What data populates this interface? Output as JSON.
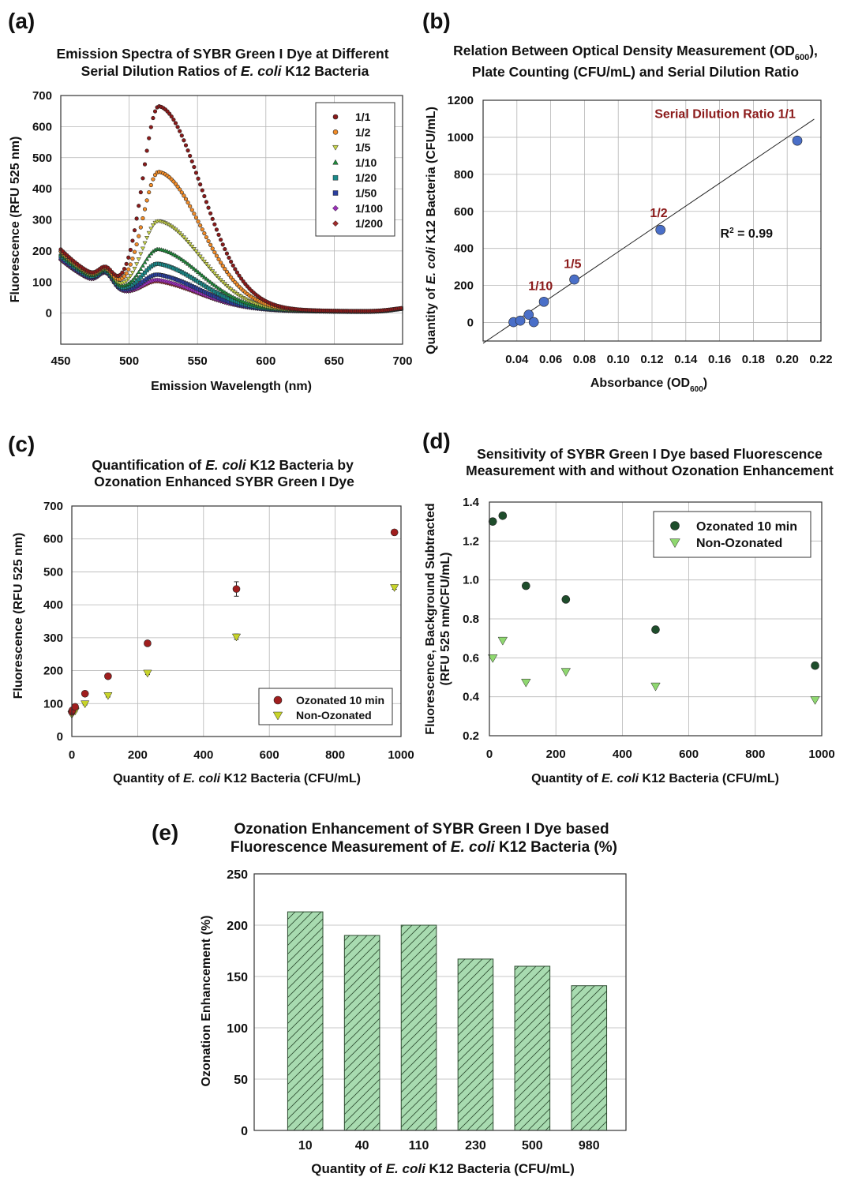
{
  "panels": {
    "a": {
      "label": "(a)",
      "title_line1": "Emission Spectra of SYBR Green I Dye at Different",
      "title_line2_pre": "Serial Dilution Ratios of ",
      "title_line2_italic": "E. coli",
      "title_line2_post": " K12 Bacteria",
      "xlabel": "Emission Wavelength (nm)",
      "ylabel": "Fluorescence (RFU 525 nm)"
    },
    "b": {
      "label": "(b)",
      "title_line1_pre": "Relation Between Optical Density Measurement (OD",
      "title_line1_sub": "600",
      "title_line1_post": "),",
      "title_line2": "Plate Counting (CFU/mL) and Serial Dilution Ratio",
      "xlabel_pre": "Absorbance (OD",
      "xlabel_sub": "600",
      "xlabel_post": ")",
      "ylabel_pre": "Quantity of ",
      "ylabel_italic": "E. coli",
      "ylabel_post": " K12 Bacteria (CFU/mL)",
      "r2_pre": "R",
      "r2_sup": "2",
      "r2_post": " = 0.99"
    },
    "c": {
      "label": "(c)",
      "title_line1_pre": "Quantification of ",
      "title_line1_italic": "E. coli",
      "title_line1_post": " K12 Bacteria by",
      "title_line2": "Ozonation Enhanced SYBR Green I Dye",
      "xlabel_pre": "Quantity of ",
      "xlabel_italic": "E. coli",
      "xlabel_post": " K12 Bacteria (CFU/mL)",
      "ylabel": "Fluorescence  (RFU 525 nm)"
    },
    "d": {
      "label": "(d)",
      "title_line1": "Sensitivity of SYBR Green I Dye based Fluorescence",
      "title_line2": "Measurement with and without Ozonation Enhancement",
      "xlabel_pre": "Quantity of ",
      "xlabel_italic": "E. coli",
      "xlabel_post": " K12 Bacteria (CFU/mL)",
      "ylabel_line1": "Fluorescence, Background Subtracted",
      "ylabel_line2": "(RFU 525 nm/CFU/mL)"
    },
    "e": {
      "label": "(e)",
      "title_line1": "Ozonation Enhancement of SYBR Green I Dye based",
      "title_line2_pre": "Fluorescence Measurement of ",
      "title_line2_italic": "E. coli",
      "title_line2_post": " K12 Bacteria (%)",
      "xlabel_pre": "Quantity of ",
      "xlabel_italic": "E. coli",
      "xlabel_post": " K12 Bacteria (CFU/mL)",
      "ylabel": "Ozonation Enhancement (%)"
    }
  },
  "chart_data": [
    {
      "id": "a",
      "type": "scatter",
      "xlim": [
        450,
        700
      ],
      "ylim": [
        -100,
        700
      ],
      "xticks": [
        450,
        500,
        550,
        600,
        650,
        700
      ],
      "yticks": [
        0,
        100,
        200,
        300,
        400,
        500,
        600,
        700
      ],
      "grid": true,
      "legend_position": "top-right",
      "spectrum_model": {
        "peak_center_nm": 522,
        "sigma_left_nm": 12,
        "sigma_right_nm": 31,
        "shoulder_center_nm": 483,
        "shoulder_sigma_nm": 5,
        "baseline_decay_nm": 45,
        "red_tail_center_nm": 706,
        "red_tail_sigma_nm": 12
      },
      "series": [
        {
          "name": "1/1",
          "color": "#8b1a1a",
          "marker": "circle",
          "peak": 625,
          "start": 200,
          "shoulder": 45,
          "floor": 5
        },
        {
          "name": "1/2",
          "color": "#f28c28",
          "marker": "circle",
          "peak": 415,
          "start": 195,
          "shoulder": 45,
          "floor": 5
        },
        {
          "name": "1/5",
          "color": "#c8d44a",
          "marker": "triangle-down",
          "peak": 258,
          "start": 190,
          "shoulder": 45,
          "floor": 4
        },
        {
          "name": "1/10",
          "color": "#1f8a3b",
          "marker": "triangle-up",
          "peak": 168,
          "start": 185,
          "shoulder": 45,
          "floor": 4
        },
        {
          "name": "1/20",
          "color": "#1a8a8a",
          "marker": "square",
          "peak": 122,
          "start": 180,
          "shoulder": 45,
          "floor": 4
        },
        {
          "name": "1/50",
          "color": "#2b3f9e",
          "marker": "square",
          "peak": 88,
          "start": 175,
          "shoulder": 45,
          "floor": 3
        },
        {
          "name": "1/100",
          "color": "#9a2fb8",
          "marker": "diamond",
          "peak": 72,
          "start": 170,
          "shoulder": 45,
          "floor": 3
        },
        {
          "name": "1/200",
          "color": "#a02c2c",
          "marker": "diamond",
          "peak": 68,
          "start": 168,
          "shoulder": 45,
          "floor": 3
        }
      ]
    },
    {
      "id": "b",
      "type": "scatter",
      "xlim": [
        0.02,
        0.22
      ],
      "ylim": [
        -100,
        1200
      ],
      "xticks": [
        0.04,
        0.06,
        0.08,
        0.1,
        0.12,
        0.14,
        0.16,
        0.18,
        0.2,
        0.22
      ],
      "xtick_labels": [
        "0.04",
        "0.06",
        "0.08",
        "0.10",
        "0.12",
        "0.14",
        "0.16",
        "0.18",
        "0.20",
        "0.22"
      ],
      "yticks": [
        0,
        200,
        400,
        600,
        800,
        1000,
        1200
      ],
      "grid": true,
      "points": {
        "x": [
          0.038,
          0.042,
          0.047,
          0.05,
          0.056,
          0.074,
          0.125,
          0.206
        ],
        "y": [
          2,
          10,
          42,
          2,
          112,
          232,
          500,
          982
        ],
        "color": "#4a6fc8"
      },
      "fit_line": {
        "x": [
          0.02,
          0.216
        ],
        "y": [
          -112,
          1098
        ],
        "r2": 0.99
      },
      "annotations": [
        {
          "text": "Serial Dilution Ratio 1/1",
          "x": 0.205,
          "y": 1105
        },
        {
          "text": "1/2",
          "x": 0.124,
          "y": 570
        },
        {
          "text": "1/5",
          "x": 0.073,
          "y": 295
        },
        {
          "text": "1/10",
          "x": 0.054,
          "y": 175
        }
      ]
    },
    {
      "id": "c",
      "type": "scatter",
      "xlim": [
        0,
        1000
      ],
      "ylim": [
        0,
        700
      ],
      "xticks": [
        0,
        200,
        400,
        600,
        800,
        1000
      ],
      "yticks": [
        0,
        100,
        200,
        300,
        400,
        500,
        600,
        700
      ],
      "grid": true,
      "legend_position": "bottom-right",
      "series": [
        {
          "name": "Ozonated 10 min",
          "color": "#a01e1e",
          "marker": "circle",
          "x": [
            0,
            2,
            10,
            40,
            110,
            230,
            500,
            980
          ],
          "y": [
            75,
            80,
            90,
            130,
            183,
            283,
            448,
            620
          ],
          "err": [
            4,
            4,
            4,
            5,
            5,
            6,
            22,
            8
          ]
        },
        {
          "name": "Non-Ozonated",
          "color": "#c8d42a",
          "marker": "triangle-down",
          "x": [
            0,
            2,
            10,
            40,
            110,
            230,
            500,
            980
          ],
          "y": [
            68,
            72,
            78,
            100,
            125,
            193,
            303,
            453
          ],
          "err": [
            3,
            3,
            3,
            4,
            5,
            5,
            8,
            6
          ]
        }
      ]
    },
    {
      "id": "d",
      "type": "scatter",
      "xlim": [
        0,
        1000
      ],
      "ylim": [
        0.2,
        1.4
      ],
      "xticks": [
        0,
        200,
        400,
        600,
        800,
        1000
      ],
      "yticks": [
        0.2,
        0.4,
        0.6,
        0.8,
        1.0,
        1.2,
        1.4
      ],
      "ytick_labels": [
        "0.2",
        "0.4",
        "0.6",
        "0.8",
        "1.0",
        "1.2",
        "1.4"
      ],
      "grid": true,
      "legend_position": "top-right",
      "series": [
        {
          "name": "Ozonated 10 min",
          "color": "#1e4d2b",
          "marker": "circle",
          "x": [
            10,
            40,
            110,
            230,
            500,
            980
          ],
          "y": [
            1.3,
            1.33,
            0.97,
            0.9,
            0.745,
            0.56
          ]
        },
        {
          "name": "Non-Ozonated",
          "color": "#8fd870",
          "marker": "triangle-down",
          "x": [
            10,
            40,
            110,
            230,
            500,
            980
          ],
          "y": [
            0.6,
            0.69,
            0.475,
            0.53,
            0.455,
            0.385
          ]
        }
      ]
    },
    {
      "id": "e",
      "type": "bar",
      "categories": [
        "10",
        "40",
        "110",
        "230",
        "500",
        "980"
      ],
      "values": [
        213,
        190,
        200,
        167,
        160,
        141
      ],
      "ylim": [
        0,
        250
      ],
      "yticks": [
        0,
        50,
        100,
        150,
        200,
        250
      ],
      "grid": true,
      "bar_color": "#a8dbb0",
      "hatch": "diagonal"
    }
  ]
}
